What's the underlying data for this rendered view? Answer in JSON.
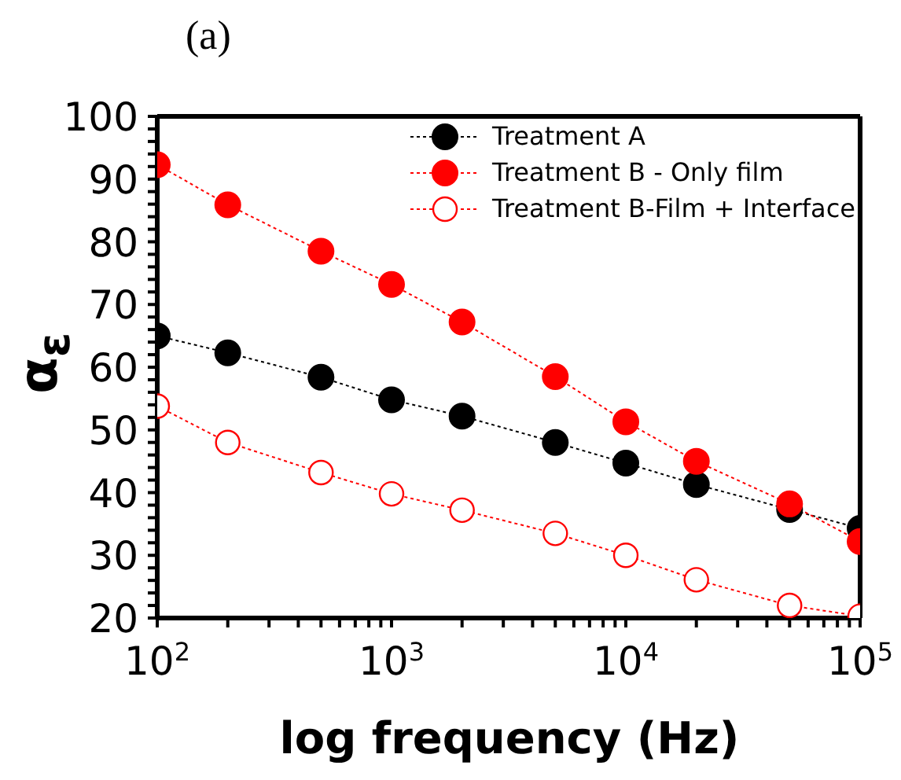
{
  "chart_data": {
    "type": "line",
    "title": "(a)",
    "xlabel": "log frequency (Hz)",
    "ylabel": "α$_{ε}$",
    "log": "x",
    "legend": "top right",
    "marker": "circle",
    "line_style": "dotted",
    "xlim": [
      100,
      100000
    ],
    "xticks": [
      {
        "value": 100,
        "label": "10$^{2}$"
      },
      {
        "value": 200,
        "label": null
      },
      {
        "value": 300,
        "label": null
      },
      {
        "value": 400,
        "label": null
      },
      {
        "value": 500,
        "label": null
      },
      {
        "value": 600,
        "label": null
      },
      {
        "value": 700,
        "label": null
      },
      {
        "value": 800,
        "label": null
      },
      {
        "value": 900,
        "label": null
      },
      {
        "value": 1000,
        "label": "10$^{3}$"
      },
      {
        "value": 2000,
        "label": null
      },
      {
        "value": 3000,
        "label": null
      },
      {
        "value": 4000,
        "label": null
      },
      {
        "value": 5000,
        "label": null
      },
      {
        "value": 6000,
        "label": null
      },
      {
        "value": 7000,
        "label": null
      },
      {
        "value": 8000,
        "label": null
      },
      {
        "value": 9000,
        "label": null
      },
      {
        "value": 10000,
        "label": "10$^{4}$"
      },
      {
        "value": 20000,
        "label": null
      },
      {
        "value": 30000,
        "label": null
      },
      {
        "value": 40000,
        "label": null
      },
      {
        "value": 50000,
        "label": null
      },
      {
        "value": 60000,
        "label": null
      },
      {
        "value": 70000,
        "label": null
      },
      {
        "value": 80000,
        "label": null
      },
      {
        "value": 90000,
        "label": null
      },
      {
        "value": 100000,
        "label": "10$^{5}$"
      }
    ],
    "ylim": [
      20,
      100
    ],
    "yticks": [
      20,
      {
        "value": 22,
        "label": null
      },
      {
        "value": 24,
        "label": null
      },
      {
        "value": 26,
        "label": null
      },
      {
        "value": 28,
        "label": null
      },
      30,
      {
        "value": 32,
        "label": null
      },
      {
        "value": 34,
        "label": null
      },
      {
        "value": 36,
        "label": null
      },
      {
        "value": 38,
        "label": null
      },
      40,
      {
        "value": 42,
        "label": null
      },
      {
        "value": 44,
        "label": null
      },
      {
        "value": 46,
        "label": null
      },
      {
        "value": 48,
        "label": null
      },
      50,
      {
        "value": 52,
        "label": null
      },
      {
        "value": 54,
        "label": null
      },
      {
        "value": 56,
        "label": null
      },
      {
        "value": 58,
        "label": null
      },
      60,
      {
        "value": 62,
        "label": null
      },
      {
        "value": 64,
        "label": null
      },
      {
        "value": 66,
        "label": null
      },
      {
        "value": 68,
        "label": null
      },
      70,
      {
        "value": 72,
        "label": null
      },
      {
        "value": 74,
        "label": null
      },
      {
        "value": 76,
        "label": null
      },
      {
        "value": 78,
        "label": null
      },
      80,
      {
        "value": 82,
        "label": null
      },
      {
        "value": 84,
        "label": null
      },
      {
        "value": 86,
        "label": null
      },
      {
        "value": 88,
        "label": null
      },
      90,
      {
        "value": 92,
        "label": null
      },
      {
        "value": 94,
        "label": null
      },
      {
        "value": 96,
        "label": null
      },
      {
        "value": 98,
        "label": null
      },
      100
    ],
    "x": [
      100,
      200,
      500,
      1000,
      2000,
      5000,
      10000,
      20000,
      50000,
      100000
    ],
    "series": [
      {
        "name": "Treatment A",
        "color": "#000000",
        "values": [
          65,
          62.3,
          58.4,
          54.8,
          52.2,
          48,
          44.7,
          41.3,
          37.3,
          34.3
        ]
      },
      {
        "name": "Treatment B - Only film",
        "color": "#ff0000",
        "values": [
          92.3,
          85.9,
          78.5,
          73.2,
          67.2,
          58.5,
          51.3,
          45,
          38.2,
          32.2
        ]
      },
      {
        "name": "Treatment B-Film + Interface",
        "color": "#ff0000",
        "marker": "circle-open",
        "values": [
          53.8,
          48,
          43.2,
          39.8,
          37.2,
          33.5,
          30,
          26.1,
          22,
          20.3
        ]
      }
    ]
  }
}
